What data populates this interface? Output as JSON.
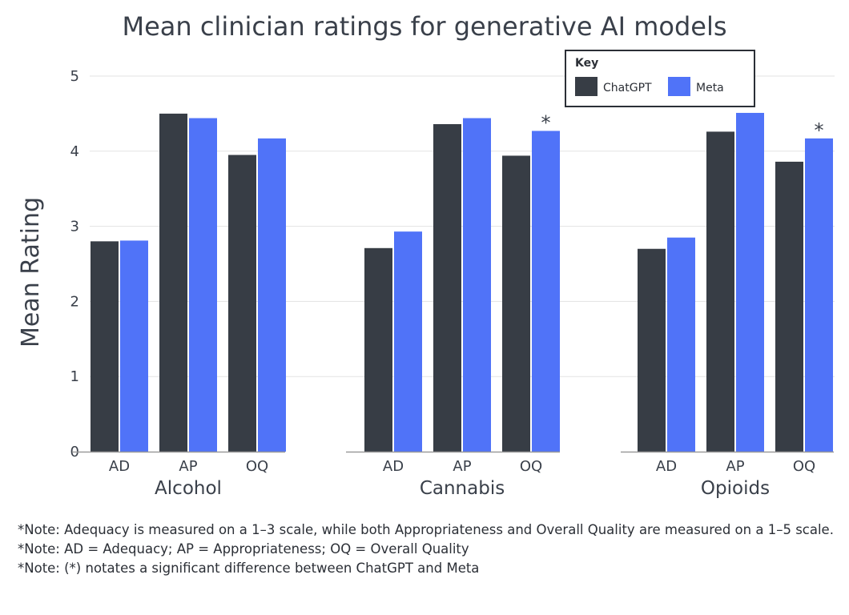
{
  "chart_data": {
    "type": "bar",
    "title": "Mean clinician ratings for generative AI models",
    "xlabel": "",
    "ylabel": "Mean Rating",
    "ylim": [
      0,
      5
    ],
    "yticks": [
      0,
      1,
      2,
      3,
      4,
      5
    ],
    "grid": true,
    "legend": {
      "title": "Key",
      "placement": "top-right"
    },
    "series": [
      {
        "name": "ChatGPT",
        "color": "#373d45"
      },
      {
        "name": "Meta",
        "color": "#5073f8"
      }
    ],
    "groups": [
      {
        "name": "Alcohol",
        "categories": [
          "AD",
          "AP",
          "OQ"
        ],
        "values": {
          "ChatGPT": [
            2.8,
            4.5,
            3.95
          ],
          "Meta": [
            2.81,
            4.44,
            4.17
          ]
        },
        "significant": [
          false,
          false,
          false
        ]
      },
      {
        "name": "Cannabis",
        "categories": [
          "AD",
          "AP",
          "OQ"
        ],
        "values": {
          "ChatGPT": [
            2.71,
            4.36,
            3.94
          ],
          "Meta": [
            2.93,
            4.44,
            4.27
          ]
        },
        "significant": [
          false,
          false,
          true
        ]
      },
      {
        "name": "Opioids",
        "categories": [
          "AD",
          "AP",
          "OQ"
        ],
        "values": {
          "ChatGPT": [
            2.7,
            4.26,
            3.86
          ],
          "Meta": [
            2.85,
            4.51,
            4.17
          ]
        },
        "significant": [
          false,
          false,
          true
        ]
      }
    ],
    "significance_marker": "*"
  },
  "notes": [
    "*Note: Adequacy is measured on a 1–3 scale, while both Appropriateness and Overall Quality are measured on a 1–5 scale.",
    "*Note: AD = Adequacy; AP = Appropriateness; OQ = Overall Quality",
    "*Note: (*) notates a significant difference between ChatGPT and Meta"
  ]
}
